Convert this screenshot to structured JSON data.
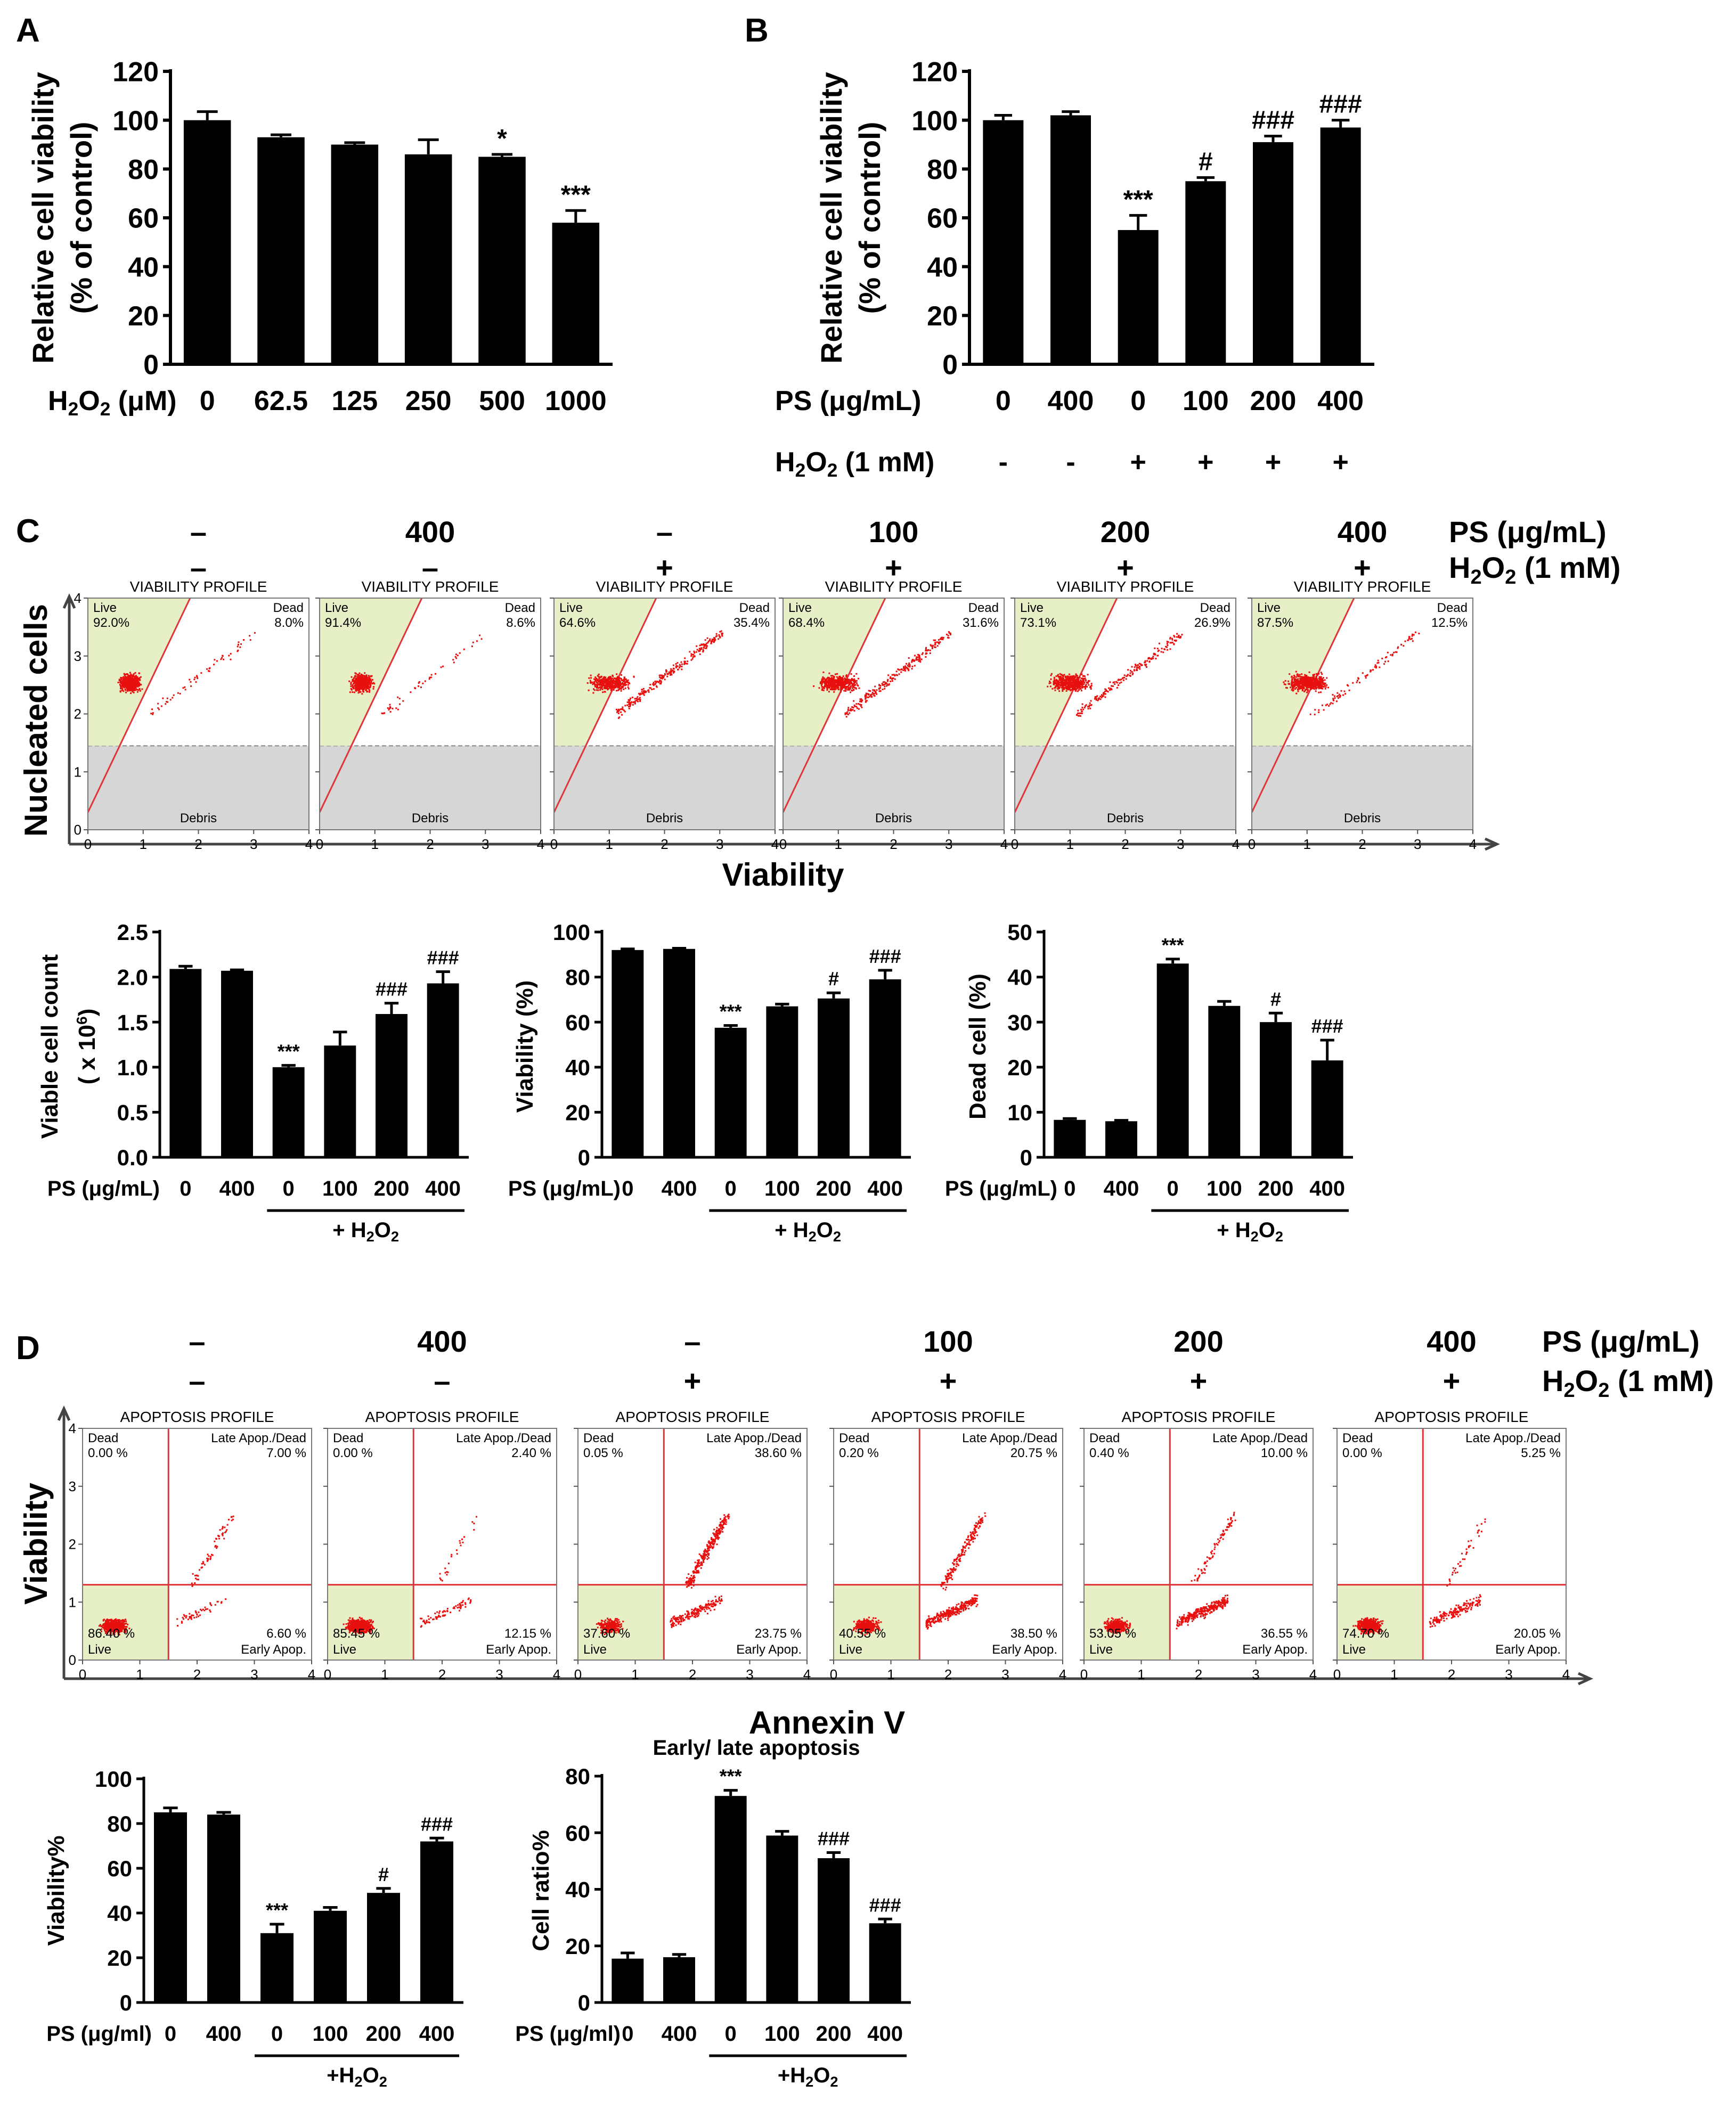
{
  "panels": {
    "A": "A",
    "B": "B",
    "C": "C",
    "D": "D"
  },
  "chart_data": [
    {
      "id": "A",
      "type": "bar",
      "ylabel_line1": "Relative cell viability",
      "ylabel_line2": "(% of control)",
      "xlabel": "H2O2 (μM)",
      "categories": [
        "0",
        "62.5",
        "125",
        "250",
        "500",
        "1000"
      ],
      "values": [
        100,
        93,
        90,
        86,
        85,
        58
      ],
      "errors": [
        3.5,
        1,
        0.8,
        6,
        1,
        5
      ],
      "marks": [
        "",
        "",
        "",
        "",
        "*",
        "***"
      ],
      "ylim": [
        0,
        120
      ],
      "yticks": [
        "0",
        "20",
        "40",
        "60",
        "80",
        "100",
        "120"
      ]
    },
    {
      "id": "B",
      "type": "bar",
      "ylabel_line1": "Relative cell viability",
      "ylabel_line2": "(% of control)",
      "row1_label": "PS (μg/mL)",
      "row2_label": "H2O2 (1 mM)",
      "categories": [
        "0",
        "400",
        "0",
        "100",
        "200",
        "400"
      ],
      "h2o2": [
        "-",
        "-",
        "+",
        "+",
        "+",
        "+"
      ],
      "values": [
        100,
        102,
        55,
        75,
        91,
        97
      ],
      "errors": [
        2,
        1.5,
        6,
        1.5,
        2.5,
        3
      ],
      "marks": [
        "",
        "",
        "***",
        "#",
        "###",
        "###"
      ],
      "ylim": [
        0,
        120
      ],
      "yticks": [
        "0",
        "20",
        "40",
        "60",
        "80",
        "100",
        "120"
      ]
    },
    {
      "id": "C1",
      "type": "bar",
      "ylabel": "Viable cell count",
      "ylabel_unit": "( x 10",
      "xlabel": "PS (μg/mL)",
      "treat_label": "+ H2O2",
      "categories": [
        "0",
        "400",
        "0",
        "100",
        "200",
        "400"
      ],
      "values": [
        2.09,
        2.07,
        1.0,
        1.24,
        1.59,
        1.93
      ],
      "errors": [
        0.03,
        0.01,
        0.02,
        0.15,
        0.12,
        0.13
      ],
      "marks": [
        "",
        "",
        "***",
        "",
        "###",
        "###"
      ],
      "ylim": [
        0,
        2.5
      ],
      "yticks": [
        "0.0",
        "0.5",
        "1.0",
        "1.5",
        "2.0",
        "2.5"
      ]
    },
    {
      "id": "C2",
      "type": "bar",
      "ylabel": "Viability (%)",
      "xlabel": "PS (μg/mL)",
      "treat_label": "+ H2O2",
      "categories": [
        "0",
        "400",
        "0",
        "100",
        "200",
        "400"
      ],
      "values": [
        92,
        92.5,
        57.5,
        67,
        70.5,
        79
      ],
      "errors": [
        0.5,
        0.3,
        1,
        1,
        2.5,
        4
      ],
      "marks": [
        "",
        "",
        "***",
        "",
        "#",
        "###"
      ],
      "ylim": [
        0,
        100
      ],
      "yticks": [
        "0",
        "20",
        "40",
        "60",
        "80",
        "100"
      ]
    },
    {
      "id": "C3",
      "type": "bar",
      "ylabel": "Dead cell (%)",
      "xlabel": "PS (μg/mL)",
      "treat_label": "+ H2O2",
      "categories": [
        "0",
        "400",
        "0",
        "100",
        "200",
        "400"
      ],
      "values": [
        8.3,
        8,
        43,
        33.6,
        30,
        21.5
      ],
      "errors": [
        0.3,
        0.2,
        1,
        1,
        2,
        4.5
      ],
      "marks": [
        "",
        "",
        "***",
        "",
        "#",
        "###"
      ],
      "ylim": [
        0,
        50
      ],
      "yticks": [
        "0",
        "10",
        "20",
        "30",
        "40",
        "50"
      ]
    },
    {
      "id": "D1",
      "type": "bar",
      "ylabel": "Viability%",
      "xlabel": "PS (μg/ml)",
      "treat_label": "+H2O2",
      "categories": [
        "0",
        "400",
        "0",
        "100",
        "200",
        "400"
      ],
      "values": [
        85,
        84,
        31,
        41,
        49,
        72
      ],
      "errors": [
        2,
        1,
        4,
        1.5,
        2,
        1.5
      ],
      "marks": [
        "",
        "",
        "***",
        "",
        "#",
        "###"
      ],
      "ylim": [
        0,
        100
      ],
      "yticks": [
        "0",
        "20",
        "40",
        "60",
        "80",
        "100"
      ]
    },
    {
      "id": "D2",
      "type": "bar",
      "title": "Early/ late apoptosis",
      "ylabel": "Cell ratio%",
      "xlabel": "PS (μg/ml)",
      "treat_label": "+H2O2",
      "categories": [
        "0",
        "400",
        "0",
        "100",
        "200",
        "400"
      ],
      "values": [
        15.5,
        16,
        73,
        59,
        51,
        28
      ],
      "errors": [
        2,
        1,
        2,
        1.5,
        2,
        1.5
      ],
      "marks": [
        "",
        "",
        "***",
        "",
        "###",
        "###"
      ],
      "ylim": [
        0,
        80
      ],
      "yticks": [
        "0",
        "20",
        "40",
        "60",
        "80"
      ]
    },
    {
      "id": "C-flow",
      "type": "scatter",
      "panel_title": "VIABILITY PROFILE",
      "ylabel": "Nucleated cells",
      "xlabel": "Viability",
      "zones": {
        "live": "Live",
        "dead": "Dead",
        "debris": "Debris"
      },
      "xticks": [
        "0",
        "1",
        "2",
        "3",
        "4"
      ],
      "yticks": [
        "0",
        "1",
        "2",
        "3",
        "4"
      ],
      "header_ps": [
        "–",
        "400",
        "–",
        "100",
        "200",
        "400"
      ],
      "header_h2o2": [
        "–",
        "–",
        "+",
        "+",
        "+",
        "+"
      ],
      "header_ps_label": "PS (μg/mL)",
      "header_h2o2_label": "H2O2 (1 mM)",
      "plots": [
        {
          "live": "92.0%",
          "dead": "8.0%"
        },
        {
          "live": "91.4%",
          "dead": "8.6%"
        },
        {
          "live": "64.6%",
          "dead": "35.4%"
        },
        {
          "live": "68.4%",
          "dead": "31.6%"
        },
        {
          "live": "73.1%",
          "dead": "26.9%"
        },
        {
          "live": "87.5%",
          "dead": "12.5%"
        }
      ]
    },
    {
      "id": "D-flow",
      "type": "scatter",
      "panel_title": "APOPTOSIS PROFILE",
      "ylabel": "Viability",
      "xlabel": "Annexin V",
      "quadrants": {
        "dead": "Dead",
        "late": "Late Apop./Dead",
        "live": "Live",
        "early": "Early Apop."
      },
      "xticks": [
        "0",
        "1",
        "2",
        "3",
        "4"
      ],
      "yticks": [
        "0",
        "1",
        "2",
        "3",
        "4"
      ],
      "header_ps": [
        "–",
        "400",
        "–",
        "100",
        "200",
        "400"
      ],
      "header_h2o2": [
        "–",
        "–",
        "+",
        "+",
        "+",
        "+"
      ],
      "header_ps_label": "PS (μg/mL)",
      "header_h2o2_label": "H2O2 (1 mM)",
      "plots": [
        {
          "dead": "0.00 %",
          "late": "7.00 %",
          "live": "86.40 %",
          "early": "6.60 %"
        },
        {
          "dead": "0.00 %",
          "late": "2.40 %",
          "live": "85.45 %",
          "early": "12.15 %"
        },
        {
          "dead": "0.05 %",
          "late": "38.60 %",
          "live": "37.60 %",
          "early": "23.75 %"
        },
        {
          "dead": "0.20 %",
          "late": "20.75 %",
          "live": "40.55 %",
          "early": "38.50 %"
        },
        {
          "dead": "0.40 %",
          "late": "10.00 %",
          "live": "53.05 %",
          "early": "36.55 %"
        },
        {
          "dead": "0.00 %",
          "late": "5.25 %",
          "live": "74.70 %",
          "early": "20.05 %"
        }
      ]
    }
  ]
}
